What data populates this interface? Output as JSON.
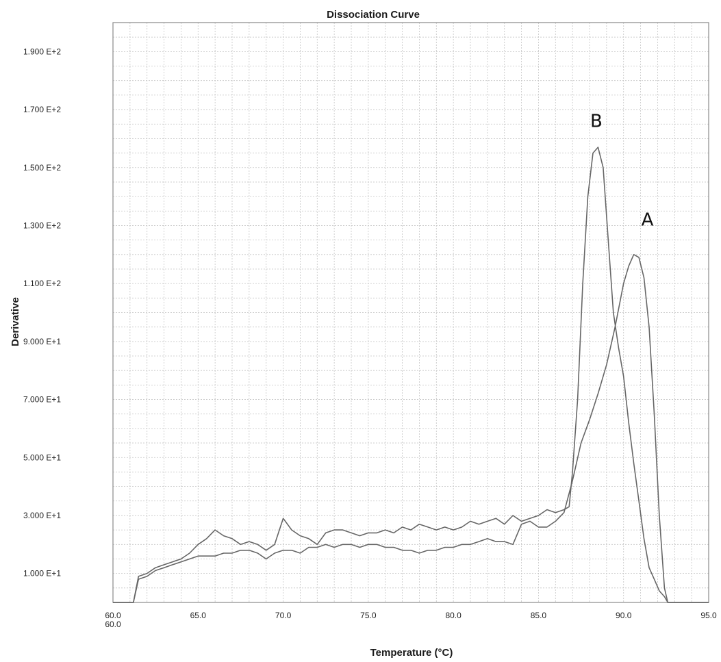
{
  "chart_data": {
    "type": "line",
    "title": "Dissociation Curve",
    "xlabel": "Temperature (°C)",
    "ylabel": "Derivative",
    "xlim": [
      60,
      95
    ],
    "ylim": [
      0,
      200
    ],
    "grid": true,
    "legend": "none",
    "line_color": "#666666",
    "x_tick_values": [
      60,
      65,
      70,
      75,
      80,
      85,
      90,
      95
    ],
    "x_tick_labels": [
      "60.0",
      "65.0",
      "70.0",
      "75.0",
      "80.0",
      "85.0",
      "90.0",
      "95.0"
    ],
    "x_origin_label": "60.0",
    "y_tick_values": [
      10,
      30,
      50,
      70,
      90,
      110,
      130,
      150,
      170,
      190
    ],
    "y_tick_labels": [
      "1.000  E+1",
      "3.000  E+1",
      "5.000  E+1",
      "7.000  E+1",
      "9.000  E+1",
      "1.100  E+2",
      "1.300  E+2",
      "1.500  E+2",
      "1.700  E+2",
      "1.900  E+2"
    ],
    "series": [
      {
        "x": [
          60.0,
          61.2,
          61.5,
          62.0,
          62.5,
          63.0,
          63.5,
          64.0,
          64.5,
          65.0,
          65.5,
          66.0,
          66.5,
          67.0,
          67.5,
          68.0,
          68.5,
          69.0,
          69.5,
          70.0,
          70.5,
          71.0,
          71.5,
          72.0,
          72.5,
          73.0,
          73.5,
          74.0,
          74.5,
          75.0,
          75.5,
          76.0,
          76.5,
          77.0,
          77.5,
          78.0,
          78.5,
          79.0,
          79.5,
          80.0,
          80.5,
          81.0,
          81.5,
          82.0,
          82.5,
          83.0,
          83.5,
          84.0,
          84.5,
          85.0,
          85.5,
          86.0,
          86.5,
          87.0,
          87.5,
          88.0,
          88.5,
          89.0,
          89.5,
          90.0,
          90.3,
          90.6,
          90.9,
          91.2,
          91.5,
          91.8,
          92.1,
          92.4,
          92.6,
          93.0,
          95.0
        ],
        "values": [
          0,
          0,
          8,
          9,
          11,
          12,
          13,
          14,
          15,
          16,
          16,
          16,
          17,
          17,
          18,
          18,
          17,
          15,
          17,
          18,
          18,
          17,
          19,
          19,
          20,
          19,
          20,
          20,
          19,
          20,
          20,
          19,
          19,
          18,
          18,
          17,
          18,
          18,
          19,
          19,
          20,
          20,
          21,
          22,
          21,
          21,
          20,
          27,
          28,
          26,
          26,
          28,
          31,
          42,
          55,
          63,
          72,
          82,
          95,
          110,
          116,
          120,
          119,
          112,
          95,
          65,
          30,
          5,
          0,
          0,
          0
        ]
      },
      {
        "x": [
          60.0,
          61.2,
          61.5,
          62.0,
          62.5,
          63.0,
          63.5,
          64.0,
          64.5,
          65.0,
          65.5,
          66.0,
          66.5,
          67.0,
          67.5,
          68.0,
          68.5,
          69.0,
          69.5,
          70.0,
          70.5,
          71.0,
          71.5,
          72.0,
          72.5,
          73.0,
          73.5,
          74.0,
          74.5,
          75.0,
          75.5,
          76.0,
          76.5,
          77.0,
          77.5,
          78.0,
          78.5,
          79.0,
          79.5,
          80.0,
          80.5,
          81.0,
          81.5,
          82.0,
          82.5,
          83.0,
          83.5,
          84.0,
          84.5,
          85.0,
          85.5,
          86.0,
          86.5,
          86.8,
          87.0,
          87.3,
          87.6,
          87.9,
          88.2,
          88.5,
          88.8,
          89.1,
          89.4,
          89.7,
          90.0,
          90.3,
          90.6,
          90.9,
          91.2,
          91.5,
          91.8,
          92.1,
          92.4,
          92.6,
          93.0,
          95.0
        ],
        "values": [
          0,
          0,
          9,
          10,
          12,
          13,
          14,
          15,
          17,
          20,
          22,
          25,
          23,
          22,
          20,
          21,
          20,
          18,
          20,
          29,
          25,
          23,
          22,
          20,
          24,
          25,
          25,
          24,
          23,
          24,
          24,
          25,
          24,
          26,
          25,
          27,
          26,
          25,
          26,
          25,
          26,
          28,
          27,
          28,
          29,
          27,
          30,
          28,
          29,
          30,
          32,
          31,
          32,
          33,
          45,
          70,
          110,
          140,
          155,
          157,
          150,
          125,
          100,
          88,
          78,
          62,
          48,
          35,
          22,
          12,
          8,
          4,
          2,
          0,
          0,
          0
        ]
      }
    ],
    "annotations": [
      {
        "text": "B",
        "x": 88.4,
        "y": 164
      },
      {
        "text": "A",
        "x": 91.4,
        "y": 130
      }
    ]
  }
}
